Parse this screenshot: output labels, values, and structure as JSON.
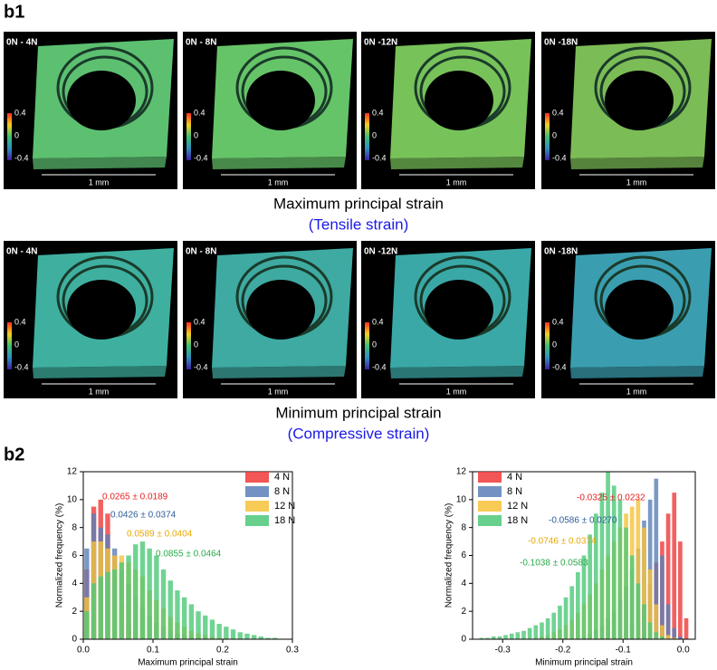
{
  "figure": {
    "panel_b1": "b1",
    "panel_b2": "b2",
    "colorbar_labels": [
      "0.4",
      "0",
      "-0.4"
    ],
    "scale_bar": "1 mm",
    "rows": [
      {
        "images": [
          "0N - 4N",
          "0N - 8N",
          "0N -12N",
          "0N -18N"
        ],
        "caption": "Maximum principal strain",
        "subcaption": "(Tensile strain)"
      },
      {
        "images": [
          "0N - 4N",
          "0N - 8N",
          "0N -12N",
          "0N -18N"
        ],
        "caption": "Minimum principal strain",
        "subcaption": "(Compressive strain)"
      }
    ]
  },
  "chart_data": [
    {
      "type": "histogram",
      "x_label": "Maximum principal strain",
      "y_label": "Normalized frequency (%)",
      "xlim": [
        0,
        0.3
      ],
      "ylim": [
        0,
        12
      ],
      "xticks": [
        {
          "value": 0,
          "label": "0.0"
        },
        0.1,
        0.2,
        0.3
      ],
      "yticks": [
        0,
        2,
        4,
        6,
        8,
        10,
        12
      ],
      "legend": "upper right",
      "bins": [
        0,
        0.01,
        0.02,
        0.03,
        0.04,
        0.05,
        0.06,
        0.07,
        0.08,
        0.09,
        0.1,
        0.11,
        0.12,
        0.13,
        0.14,
        0.15,
        0.16,
        0.17,
        0.18,
        0.19,
        0.2,
        0.21,
        0.22,
        0.23,
        0.24,
        0.25,
        0.26,
        0.27,
        0.28,
        0.29,
        0.3
      ],
      "series": [
        {
          "name": "4  N",
          "color": "#f03838",
          "values": [
            5,
            9.5,
            10,
            9,
            6,
            2.5,
            1,
            0.4,
            0.2,
            0.1,
            0,
            0,
            0,
            0,
            0,
            0,
            0,
            0,
            0,
            0,
            0,
            0,
            0,
            0,
            0,
            0,
            0,
            0,
            0,
            0
          ]
        },
        {
          "name": "8  N",
          "color": "#5a7fb8",
          "values": [
            6.5,
            9,
            8,
            7.5,
            6.5,
            5,
            4,
            3,
            2.3,
            1.7,
            1.2,
            0.9,
            0.6,
            0.4,
            0.3,
            0.2,
            0.1,
            0.1,
            0,
            0,
            0,
            0,
            0,
            0,
            0,
            0,
            0,
            0,
            0,
            0
          ]
        },
        {
          "name": "12 N",
          "color": "#f7c238",
          "values": [
            3,
            7,
            7,
            6.5,
            6,
            6,
            5.5,
            5,
            4.5,
            3.5,
            2.8,
            2.2,
            1.6,
            1.2,
            0.9,
            0.6,
            0.4,
            0.3,
            0.2,
            0.1,
            0.1,
            0,
            0,
            0,
            0,
            0,
            0,
            0,
            0,
            0
          ]
        },
        {
          "name": "18 N",
          "color": "#4cc878",
          "values": [
            2,
            4,
            4.5,
            4.8,
            5,
            5.5,
            6,
            6.8,
            7,
            6.5,
            6,
            5,
            4.2,
            3.5,
            3,
            2.5,
            2,
            1.7,
            1.4,
            1.1,
            0.9,
            0.7,
            0.5,
            0.4,
            0.3,
            0.2,
            0.1,
            0.1,
            0,
            0
          ]
        }
      ],
      "annotations": [
        {
          "text": "0.0265 ± 0.0189",
          "color": "#e8201e"
        },
        {
          "text": "0.0426 ± 0.0374",
          "color": "#2e5c9a"
        },
        {
          "text": "0.0589 ± 0.0404",
          "color": "#e8a800"
        },
        {
          "text": "0.0855 ± 0.0464",
          "color": "#2aa84a"
        }
      ]
    },
    {
      "type": "histogram",
      "x_label": "Minimum principal strain",
      "y_label": "Normalized frequency (%)",
      "xlim": [
        -0.35,
        0.02
      ],
      "ylim": [
        0,
        12
      ],
      "xticks": [
        -0.3,
        -0.2,
        -0.1,
        {
          "value": 0,
          "label": "0.0"
        }
      ],
      "yticks": [
        0,
        2,
        4,
        6,
        8,
        10,
        12
      ],
      "legend": "upper left",
      "bins": [
        -0.34,
        -0.33,
        -0.32,
        -0.31,
        -0.3,
        -0.29,
        -0.28,
        -0.27,
        -0.26,
        -0.25,
        -0.24,
        -0.23,
        -0.22,
        -0.21,
        -0.2,
        -0.19,
        -0.18,
        -0.17,
        -0.16,
        -0.15,
        -0.14,
        -0.13,
        -0.12,
        -0.11,
        -0.1,
        -0.09,
        -0.08,
        -0.07,
        -0.06,
        -0.05,
        -0.04,
        -0.03,
        -0.02,
        -0.01,
        0,
        0.01
      ],
      "series": [
        {
          "name": "4  N",
          "color": "#f03838",
          "values": [
            0,
            0,
            0,
            0,
            0,
            0,
            0,
            0,
            0,
            0,
            0,
            0,
            0,
            0,
            0,
            0,
            0,
            0,
            0,
            0,
            0,
            0,
            0.2,
            0.3,
            0.5,
            1,
            1.5,
            2.5,
            4,
            5.5,
            7,
            9,
            10.5,
            7,
            1.5
          ]
        },
        {
          "name": "8  N",
          "color": "#5a7fb8",
          "values": [
            0,
            0,
            0,
            0,
            0,
            0,
            0,
            0,
            0,
            0,
            0,
            0,
            0,
            0,
            0,
            0,
            0,
            0.2,
            0.4,
            0.7,
            1,
            1.5,
            2,
            2.8,
            3.8,
            5,
            6.5,
            8.5,
            10,
            11.5,
            6,
            2.5,
            0.8,
            0.2,
            0
          ]
        },
        {
          "name": "12 N",
          "color": "#f7c238",
          "values": [
            0,
            0,
            0,
            0,
            0,
            0,
            0,
            0,
            0,
            0.1,
            0.2,
            0.3,
            0.5,
            0.7,
            1,
            1.4,
            1.9,
            2.5,
            3.2,
            4,
            5,
            6,
            7,
            8,
            9,
            9.5,
            10,
            8,
            5,
            2.5,
            1,
            0.3,
            0.1,
            0,
            0
          ]
        },
        {
          "name": "18 N",
          "color": "#4cc878",
          "values": [
            0.1,
            0.1,
            0.2,
            0.2,
            0.3,
            0.4,
            0.5,
            0.6,
            0.8,
            1,
            1.2,
            1.5,
            1.9,
            2.4,
            3,
            3.8,
            4.8,
            6,
            7.5,
            9,
            10.5,
            12,
            11,
            10,
            8,
            6,
            4,
            2.5,
            1.2,
            0.5,
            0.2,
            0,
            0,
            0,
            0
          ]
        }
      ],
      "annotations": [
        {
          "text": "-0.0325 ± 0.0232",
          "color": "#e8201e"
        },
        {
          "text": "-0.0586 ± 0.0270",
          "color": "#2e5c9a"
        },
        {
          "text": "-0.0746 ± 0.0374",
          "color": "#e8a800"
        },
        {
          "text": "-0.1038 ± 0.0583",
          "color": "#2aa84a"
        }
      ]
    }
  ]
}
